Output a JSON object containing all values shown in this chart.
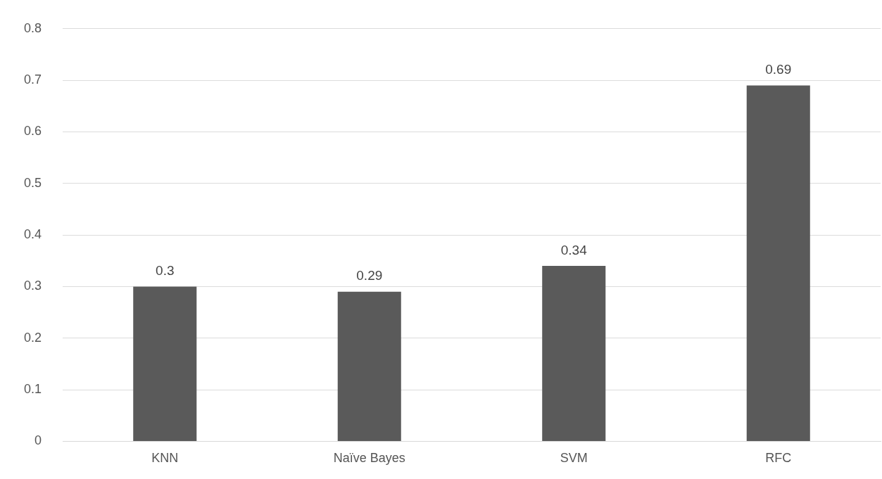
{
  "chart_data": {
    "type": "bar",
    "categories": [
      "KNN",
      "Naïve Bayes",
      "SVM",
      "RFC"
    ],
    "values": [
      0.3,
      0.29,
      0.34,
      0.69
    ],
    "color": "#5a5a5a",
    "ylim": [
      0,
      0.8
    ],
    "yticks": [
      0,
      0.1,
      0.2,
      0.3,
      0.4,
      0.5,
      0.6,
      0.7,
      0.8
    ],
    "grid": "y",
    "data_labels": true
  }
}
